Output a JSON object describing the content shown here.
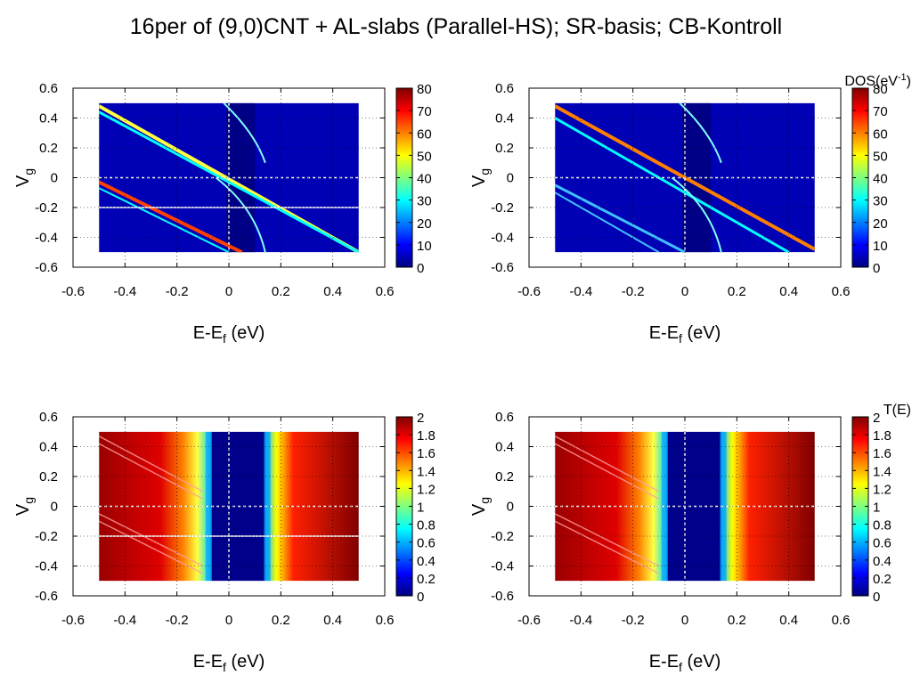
{
  "title": "16per of (9,0)CNT + AL-slabs (Parallel-HS); SR-basis; CB-Kontroll",
  "colors": {
    "map_low": "#00007f",
    "map_high": "#7f0000",
    "guide": "#ffffff",
    "grid": "#000000"
  },
  "chart_data": [
    {
      "type": "heatmap",
      "quantity": "DOS",
      "colorbar_title": "",
      "xlabel": "E-E",
      "xlabel_sub": "f",
      "xlabel_unit": "(eV)",
      "ylabel": "V",
      "ylabel_sub": "g",
      "xlim": [
        -0.6,
        0.6
      ],
      "ylim": [
        -0.6,
        0.6
      ],
      "xticks": [
        "-0.6",
        "-0.4",
        "-0.2",
        "0",
        "0.2",
        "0.4",
        "0.6"
      ],
      "yticks": [
        "0.6",
        "0.4",
        "0.2",
        "0",
        "-0.2",
        "-0.4",
        "-0.6"
      ],
      "data_extent": {
        "x": [
          -0.5,
          0.5
        ],
        "y": [
          -0.5,
          0.5
        ]
      },
      "colorbar_range": [
        0,
        80
      ],
      "colorbar_ticks": [
        "80",
        "70",
        "60",
        "50",
        "40",
        "30",
        "20",
        "10",
        "0"
      ],
      "guide_lines": {
        "vertical_x": [
          0
        ],
        "horizontal_y": [
          0,
          -0.2
        ]
      },
      "grid": true
    },
    {
      "type": "heatmap",
      "quantity": "DOS",
      "colorbar_title": "DOS(eV",
      "colorbar_title_sup": "-1",
      "colorbar_title_tail": ")",
      "xlabel": "E-E",
      "xlabel_sub": "f",
      "xlabel_unit": "(eV)",
      "ylabel": "V",
      "ylabel_sub": "g",
      "xlim": [
        -0.6,
        0.6
      ],
      "ylim": [
        -0.6,
        0.6
      ],
      "xticks": [
        "-0.6",
        "-0.4",
        "-0.2",
        "0",
        "0.2",
        "0.4",
        "0.6"
      ],
      "yticks": [
        "0.6",
        "0.4",
        "0.2",
        "0",
        "-0.2",
        "-0.4",
        "-0.6"
      ],
      "data_extent": {
        "x": [
          -0.5,
          0.5
        ],
        "y": [
          -0.5,
          0.5
        ]
      },
      "colorbar_range": [
        0,
        80
      ],
      "colorbar_ticks": [
        "80",
        "70",
        "60",
        "50",
        "40",
        "30",
        "20",
        "10",
        "0"
      ],
      "guide_lines": {
        "vertical_x": [
          0
        ],
        "horizontal_y": [
          0
        ]
      },
      "grid": true
    },
    {
      "type": "heatmap",
      "quantity": "T(E)",
      "colorbar_title": "",
      "xlabel": "E-E",
      "xlabel_sub": "f",
      "xlabel_unit": "(eV)",
      "ylabel": "V",
      "ylabel_sub": "g",
      "xlim": [
        -0.6,
        0.6
      ],
      "ylim": [
        -0.6,
        0.6
      ],
      "xticks": [
        "-0.6",
        "-0.4",
        "-0.2",
        "0",
        "0.2",
        "0.4",
        "0.6"
      ],
      "yticks": [
        "0.6",
        "0.4",
        "0.2",
        "0",
        "-0.2",
        "-0.4",
        "-0.6"
      ],
      "data_extent": {
        "x": [
          -0.5,
          0.5
        ],
        "y": [
          -0.5,
          0.5
        ]
      },
      "colorbar_range": [
        0,
        2
      ],
      "colorbar_ticks": [
        "2",
        "1.8",
        "1.6",
        "1.4",
        "1.2",
        "1",
        "0.8",
        "0.6",
        "0.4",
        "0.2",
        "0"
      ],
      "guide_lines": {
        "vertical_x": [
          0
        ],
        "horizontal_y": [
          0,
          -0.2
        ]
      },
      "grid": true
    },
    {
      "type": "heatmap",
      "quantity": "T(E)",
      "colorbar_title": "T(E)",
      "xlabel": "E-E",
      "xlabel_sub": "f",
      "xlabel_unit": "(eV)",
      "ylabel": "V",
      "ylabel_sub": "g",
      "xlim": [
        -0.6,
        0.6
      ],
      "ylim": [
        -0.6,
        0.6
      ],
      "xticks": [
        "-0.6",
        "-0.4",
        "-0.2",
        "0",
        "0.2",
        "0.4",
        "0.6"
      ],
      "yticks": [
        "0.6",
        "0.4",
        "0.2",
        "0",
        "-0.2",
        "-0.4",
        "-0.6"
      ],
      "data_extent": {
        "x": [
          -0.5,
          0.5
        ],
        "y": [
          -0.5,
          0.5
        ]
      },
      "colorbar_range": [
        0,
        2
      ],
      "colorbar_ticks": [
        "2",
        "1.8",
        "1.6",
        "1.4",
        "1.2",
        "1",
        "0.8",
        "0.6",
        "0.4",
        "0.2",
        "0"
      ],
      "guide_lines": {
        "vertical_x": [
          0
        ],
        "horizontal_y": [
          0
        ]
      },
      "grid": true
    }
  ]
}
